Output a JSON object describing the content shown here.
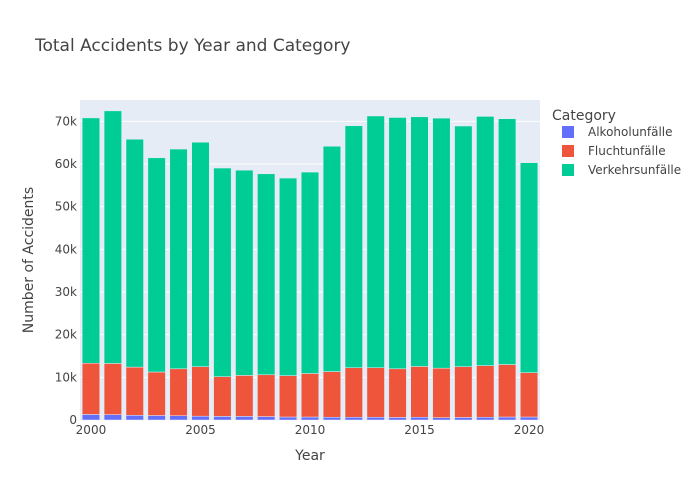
{
  "chart_data": {
    "type": "bar",
    "stacked": true,
    "title": "Total Accidents by Year and Category",
    "xlabel": "Year",
    "ylabel": "Number of Accidents",
    "legend_title": "Category",
    "legend_position": "right",
    "grid": true,
    "xlim": [
      1999.5,
      2020.5
    ],
    "ylim": [
      0,
      75000
    ],
    "x_ticks": [
      2000,
      2005,
      2010,
      2015,
      2020
    ],
    "y_ticks": [
      0,
      10000,
      20000,
      30000,
      40000,
      50000,
      60000,
      70000
    ],
    "y_tick_labels": [
      "0",
      "10k",
      "20k",
      "30k",
      "40k",
      "50k",
      "60k",
      "70k"
    ],
    "categories": [
      2000,
      2001,
      2002,
      2003,
      2004,
      2005,
      2006,
      2007,
      2008,
      2009,
      2010,
      2011,
      2012,
      2013,
      2014,
      2015,
      2016,
      2017,
      2018,
      2019,
      2020
    ],
    "series": [
      {
        "name": "Alkoholunfälle",
        "color": "#636efa",
        "values": [
          1300,
          1250,
          1100,
          1050,
          1000,
          900,
          850,
          850,
          800,
          700,
          700,
          650,
          650,
          650,
          600,
          650,
          550,
          600,
          650,
          700,
          700
        ]
      },
      {
        "name": "Fluchtunfälle",
        "color": "#ef553b",
        "values": [
          12000,
          12000,
          11300,
          10200,
          11000,
          11600,
          9300,
          9600,
          9800,
          9700,
          10200,
          10700,
          11600,
          11600,
          11400,
          11900,
          11600,
          11900,
          12100,
          12300,
          10400
        ]
      },
      {
        "name": "Verkehrsunfälle",
        "color": "#00cc96",
        "values": [
          57500,
          59200,
          53400,
          50200,
          51500,
          52600,
          48900,
          48100,
          47100,
          46300,
          47200,
          52800,
          56700,
          59000,
          58900,
          58500,
          58600,
          56400,
          58400,
          57600,
          49200
        ]
      }
    ]
  }
}
